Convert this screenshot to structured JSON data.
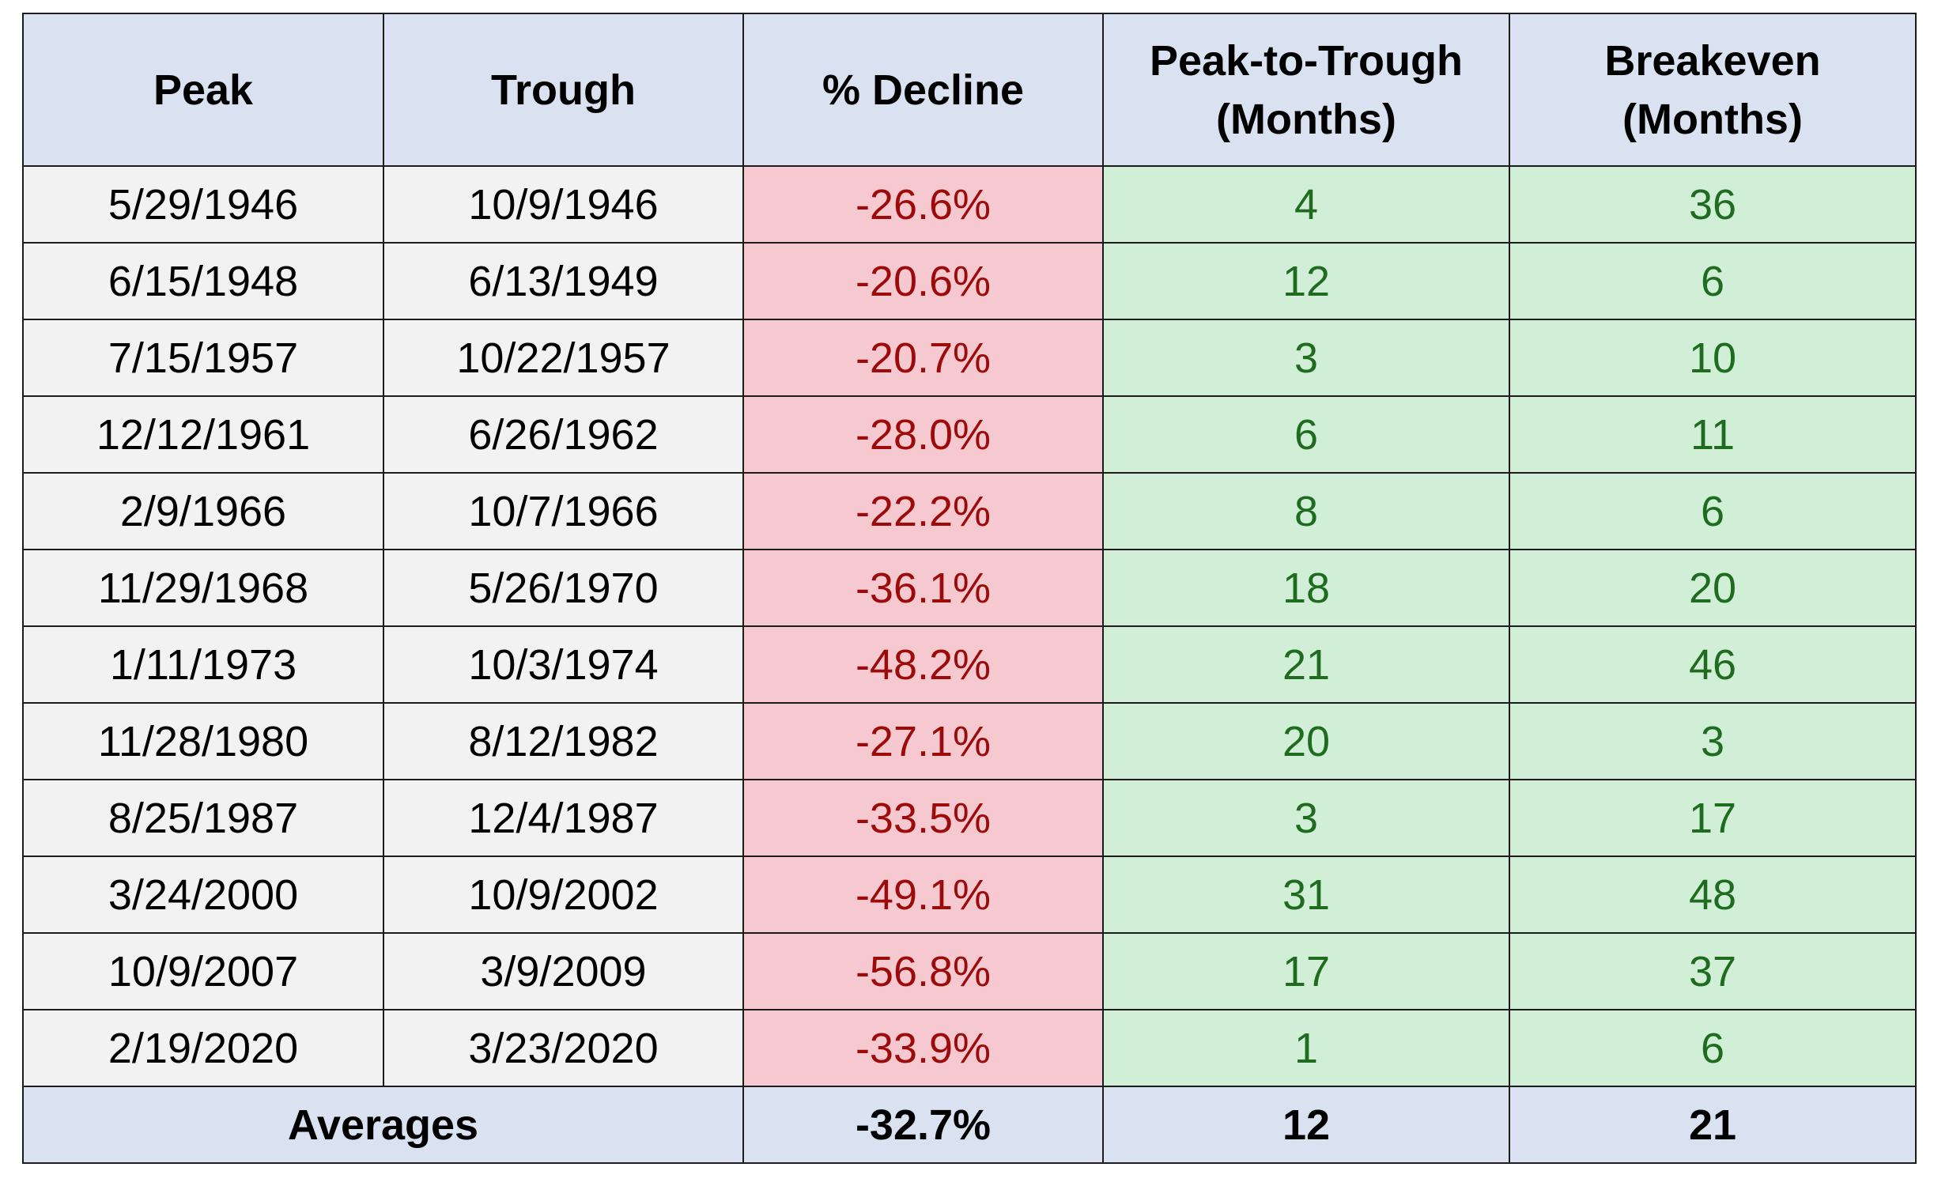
{
  "chart_data": {
    "type": "table",
    "columns": [
      {
        "line1": "Peak",
        "line2": ""
      },
      {
        "line1": "Trough",
        "line2": ""
      },
      {
        "line1": "% Decline",
        "line2": ""
      },
      {
        "line1": "Peak-to-Trough",
        "line2": "(Months)"
      },
      {
        "line1": "Breakeven",
        "line2": "(Months)"
      }
    ],
    "rows": [
      {
        "peak": "5/29/1946",
        "trough": "10/9/1946",
        "decline": "-26.6%",
        "peak_to_trough_months": "4",
        "breakeven_months": "36"
      },
      {
        "peak": "6/15/1948",
        "trough": "6/13/1949",
        "decline": "-20.6%",
        "peak_to_trough_months": "12",
        "breakeven_months": "6"
      },
      {
        "peak": "7/15/1957",
        "trough": "10/22/1957",
        "decline": "-20.7%",
        "peak_to_trough_months": "3",
        "breakeven_months": "10"
      },
      {
        "peak": "12/12/1961",
        "trough": "6/26/1962",
        "decline": "-28.0%",
        "peak_to_trough_months": "6",
        "breakeven_months": "11"
      },
      {
        "peak": "2/9/1966",
        "trough": "10/7/1966",
        "decline": "-22.2%",
        "peak_to_trough_months": "8",
        "breakeven_months": "6"
      },
      {
        "peak": "11/29/1968",
        "trough": "5/26/1970",
        "decline": "-36.1%",
        "peak_to_trough_months": "18",
        "breakeven_months": "20"
      },
      {
        "peak": "1/11/1973",
        "trough": "10/3/1974",
        "decline": "-48.2%",
        "peak_to_trough_months": "21",
        "breakeven_months": "46"
      },
      {
        "peak": "11/28/1980",
        "trough": "8/12/1982",
        "decline": "-27.1%",
        "peak_to_trough_months": "20",
        "breakeven_months": "3"
      },
      {
        "peak": "8/25/1987",
        "trough": "12/4/1987",
        "decline": "-33.5%",
        "peak_to_trough_months": "3",
        "breakeven_months": "17"
      },
      {
        "peak": "3/24/2000",
        "trough": "10/9/2002",
        "decline": "-49.1%",
        "peak_to_trough_months": "31",
        "breakeven_months": "48"
      },
      {
        "peak": "10/9/2007",
        "trough": "3/9/2009",
        "decline": "-56.8%",
        "peak_to_trough_months": "17",
        "breakeven_months": "37"
      },
      {
        "peak": "2/19/2020",
        "trough": "3/23/2020",
        "decline": "-33.9%",
        "peak_to_trough_months": "1",
        "breakeven_months": "6"
      }
    ],
    "averages": {
      "label": "Averages",
      "decline": "-32.7%",
      "peak_to_trough_months": "12",
      "breakeven_months": "21"
    },
    "colors": {
      "header_bg": "#dae1f1",
      "date_bg": "#f2f2f2",
      "decline_bg": "#f5c9cf",
      "decline_text": "#9c0a0a",
      "months_bg": "#d1eed6",
      "months_text": "#1f6b1f",
      "border": "#1c1c1c"
    }
  }
}
